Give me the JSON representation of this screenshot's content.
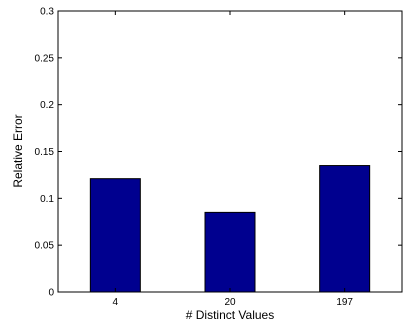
{
  "chart_data": {
    "type": "bar",
    "title": "",
    "xlabel": "# Distinct Values",
    "ylabel": "Relative Error",
    "categories": [
      "4",
      "20",
      "197"
    ],
    "values": [
      0.121,
      0.085,
      0.135
    ],
    "ylim": [
      0,
      0.3
    ],
    "yticks": [
      "0",
      "0.05",
      "0.1",
      "0.15",
      "0.2",
      "0.25",
      "0.3"
    ],
    "grid": false,
    "legend": "none",
    "bar_color": "#00008f"
  }
}
